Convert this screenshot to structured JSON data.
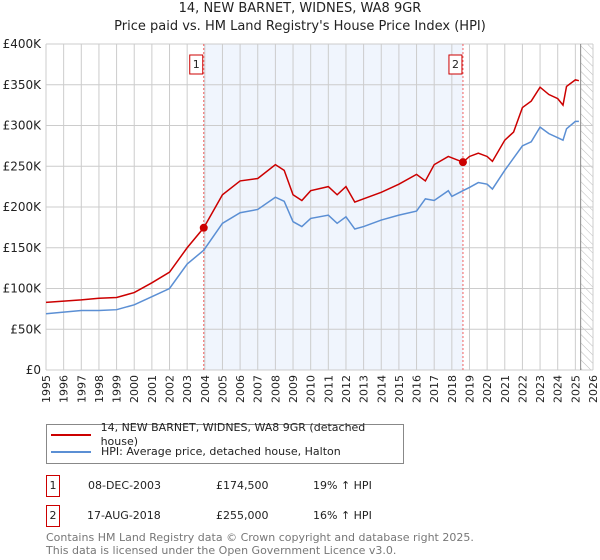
{
  "title": "14, NEW BARNET, WIDNES, WA8 9GR",
  "subtitle": "Price paid vs. HM Land Registry's House Price Index (HPI)",
  "colors": {
    "property": "#cc0000",
    "hpi": "#5b8fd4",
    "shade": "#f0f5fd"
  },
  "chart_data": {
    "type": "line",
    "title": "14, NEW BARNET, WIDNES, WA8 9GR",
    "xlim": [
      1995,
      2026
    ],
    "ylim": [
      0,
      400000
    ],
    "yticks": [
      0,
      50000,
      100000,
      150000,
      200000,
      250000,
      300000,
      350000,
      400000
    ],
    "ytick_labels": [
      "£0",
      "£50K",
      "£100K",
      "£150K",
      "£200K",
      "£250K",
      "£300K",
      "£350K",
      "£400K"
    ],
    "xticks": [
      1995,
      1996,
      1997,
      1998,
      1999,
      2000,
      2001,
      2002,
      2003,
      2004,
      2005,
      2006,
      2007,
      2008,
      2009,
      2010,
      2011,
      2012,
      2013,
      2014,
      2015,
      2016,
      2017,
      2018,
      2019,
      2020,
      2021,
      2022,
      2023,
      2024,
      2025,
      2026
    ],
    "grid": true,
    "shaded_range": [
      2003.94,
      2018.63
    ],
    "forecast_hatch_from": 2025.3,
    "series": [
      {
        "name": "14, NEW BARNET, WIDNES, WA8 9GR (detached house)",
        "color": "#cc0000",
        "x": [
          1995,
          1997,
          1998,
          1999,
          2000,
          2001,
          2002,
          2003,
          2003.94,
          2005,
          2006,
          2007,
          2008,
          2008.5,
          2009,
          2009.5,
          2010,
          2011,
          2011.5,
          2012,
          2012.5,
          2013,
          2014,
          2015,
          2016,
          2016.5,
          2017,
          2017.8,
          2018.63,
          2019,
          2019.5,
          2020,
          2020.3,
          2021,
          2021.5,
          2022,
          2022.5,
          2023,
          2023.5,
          2024,
          2024.3,
          2024.5,
          2025,
          2025.2
        ],
        "y": [
          83000,
          86000,
          88000,
          89000,
          95000,
          107000,
          120000,
          150000,
          174500,
          215000,
          232000,
          235000,
          252000,
          245000,
          215000,
          208000,
          220000,
          225000,
          215000,
          225000,
          206000,
          210000,
          218000,
          228000,
          240000,
          232000,
          252000,
          262000,
          255000,
          262000,
          266000,
          262000,
          256000,
          282000,
          292000,
          322000,
          330000,
          347000,
          338000,
          333000,
          325000,
          348000,
          356000,
          355000
        ]
      },
      {
        "name": "HPI: Average price, detached house, Halton",
        "color": "#5b8fd4",
        "x": [
          1995,
          1997,
          1998,
          1999,
          2000,
          2001,
          2002,
          2003,
          2003.94,
          2005,
          2006,
          2007,
          2008,
          2008.5,
          2009,
          2009.5,
          2010,
          2011,
          2011.5,
          2012,
          2012.5,
          2013,
          2014,
          2015,
          2016,
          2016.5,
          2017,
          2017.8,
          2018,
          2018.63,
          2019,
          2019.5,
          2020,
          2020.3,
          2021,
          2021.5,
          2022,
          2022.5,
          2023,
          2023.5,
          2024,
          2024.3,
          2024.5,
          2025,
          2025.2
        ],
        "y": [
          69000,
          73000,
          73000,
          74000,
          80000,
          90000,
          100000,
          130000,
          147000,
          180000,
          193000,
          197000,
          212000,
          207000,
          182000,
          176000,
          186000,
          190000,
          180000,
          188000,
          173000,
          176000,
          184000,
          190000,
          195000,
          210000,
          208000,
          220000,
          213000,
          220000,
          224000,
          230000,
          228000,
          222000,
          245000,
          260000,
          275000,
          280000,
          298000,
          290000,
          285000,
          282000,
          296000,
          305000,
          305000
        ]
      }
    ],
    "sales": [
      {
        "label": "1",
        "x": 2003.94,
        "y": 174500
      },
      {
        "label": "2",
        "x": 2018.63,
        "y": 255000
      }
    ]
  },
  "legend": {
    "property": "14, NEW BARNET, WIDNES, WA8 9GR (detached house)",
    "hpi": "HPI: Average price, detached house, Halton"
  },
  "sales_table": [
    {
      "num": "1",
      "date": "08-DEC-2003",
      "price": "£174,500",
      "delta": "19% ↑ HPI"
    },
    {
      "num": "2",
      "date": "17-AUG-2018",
      "price": "£255,000",
      "delta": "16% ↑ HPI"
    }
  ],
  "footer": {
    "line1": "Contains HM Land Registry data © Crown copyright and database right 2025.",
    "line2": "This data is licensed under the Open Government Licence v3.0."
  }
}
